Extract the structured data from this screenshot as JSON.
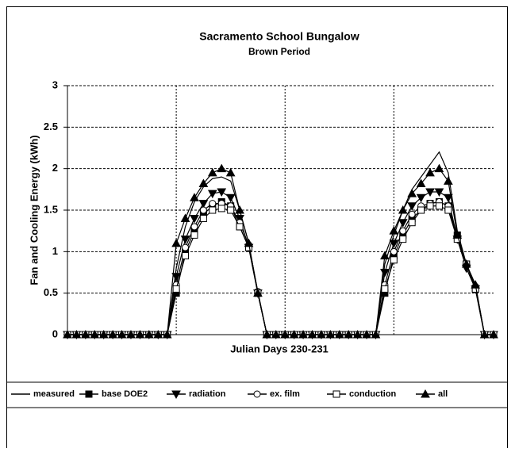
{
  "chart_data": {
    "type": "line",
    "title": "Sacramento School Bungalow",
    "subtitle": "Brown Period",
    "x_label": "Julian Days 230-231",
    "y_label": "Fan and Cooling Energy (kWh)",
    "categories": [
      null,
      null,
      null,
      null,
      null,
      null,
      null,
      null,
      null,
      null,
      null,
      null,
      null,
      null,
      null,
      null,
      null,
      null,
      null,
      null,
      null,
      null,
      null,
      null,
      null,
      null,
      null,
      null,
      null,
      null,
      null,
      null,
      null,
      null,
      null,
      null,
      null,
      null,
      null,
      null,
      null,
      null,
      null,
      null,
      null,
      null,
      null,
      null
    ],
    "ylim": [
      0,
      3
    ],
    "yticks": [
      0,
      0.5,
      1,
      1.5,
      2,
      2.5,
      3
    ],
    "grid": true,
    "legend": "bottom",
    "series": [
      {
        "name": "measured",
        "color": "#000000",
        "marker": "none",
        "values": [
          0,
          0,
          0,
          0,
          0,
          0,
          0,
          0,
          0,
          0,
          0,
          0,
          0.8,
          1.3,
          1.6,
          1.78,
          1.88,
          1.9,
          1.85,
          1.5,
          1.1,
          0.5,
          0,
          0,
          0,
          0,
          0,
          0,
          0,
          0,
          0,
          0,
          0,
          0,
          0,
          0.85,
          1.2,
          1.5,
          1.75,
          1.9,
          2.05,
          2.2,
          1.95,
          1.25,
          0.85,
          0.6,
          0,
          0
        ]
      },
      {
        "name": "base DOE2",
        "color": "#000000",
        "marker": "square",
        "values": [
          0,
          0,
          0,
          0,
          0,
          0,
          0,
          0,
          0,
          0,
          0,
          0,
          0.5,
          1.0,
          1.25,
          1.45,
          1.55,
          1.6,
          1.55,
          1.3,
          1.05,
          0.5,
          0,
          0,
          0,
          0,
          0,
          0,
          0,
          0,
          0,
          0,
          0,
          0,
          0,
          0.5,
          0.95,
          1.2,
          1.4,
          1.5,
          1.58,
          1.6,
          1.55,
          1.2,
          0.85,
          0.55,
          0,
          0
        ]
      },
      {
        "name": "radiation",
        "color": "#000000",
        "marker": "triangle-down",
        "values": [
          0,
          0,
          0,
          0,
          0,
          0,
          0,
          0,
          0,
          0,
          0,
          0,
          0.7,
          1.15,
          1.4,
          1.58,
          1.7,
          1.72,
          1.65,
          1.4,
          1.05,
          0.5,
          0,
          0,
          0,
          0,
          0,
          0,
          0,
          0,
          0,
          0,
          0,
          0,
          0,
          0.75,
          1.1,
          1.35,
          1.55,
          1.65,
          1.72,
          1.72,
          1.65,
          1.15,
          0.8,
          0.55,
          0,
          0
        ]
      },
      {
        "name": "ex. film",
        "color": "#000000",
        "marker": "circle-open",
        "values": [
          0,
          0,
          0,
          0,
          0,
          0,
          0,
          0,
          0,
          0,
          0,
          0,
          0.6,
          1.05,
          1.3,
          1.5,
          1.58,
          1.58,
          1.55,
          1.35,
          1.08,
          0.52,
          0,
          0,
          0,
          0,
          0,
          0,
          0,
          0,
          0,
          0,
          0,
          0,
          0,
          0.6,
          1.0,
          1.25,
          1.45,
          1.55,
          1.58,
          1.6,
          1.55,
          1.15,
          0.85,
          0.58,
          0,
          0
        ]
      },
      {
        "name": "conduction",
        "color": "#000000",
        "marker": "square-open",
        "values": [
          0,
          0,
          0,
          0,
          0,
          0,
          0,
          0,
          0,
          0,
          0,
          0,
          0.55,
          0.95,
          1.2,
          1.4,
          1.5,
          1.52,
          1.5,
          1.3,
          1.05,
          0.5,
          0,
          0,
          0,
          0,
          0,
          0,
          0,
          0,
          0,
          0,
          0,
          0,
          0,
          0.55,
          0.9,
          1.15,
          1.35,
          1.5,
          1.55,
          1.55,
          1.5,
          1.15,
          0.85,
          0.55,
          0,
          0
        ]
      },
      {
        "name": "all",
        "color": "#000000",
        "marker": "triangle-up",
        "values": [
          0,
          0,
          0,
          0,
          0,
          0,
          0,
          0,
          0,
          0,
          0,
          0,
          1.1,
          1.4,
          1.65,
          1.82,
          1.95,
          2.0,
          1.95,
          1.5,
          1.1,
          0.5,
          0,
          0,
          0,
          0,
          0,
          0,
          0,
          0,
          0,
          0,
          0,
          0,
          0,
          0.95,
          1.25,
          1.5,
          1.7,
          1.82,
          1.95,
          2.0,
          1.85,
          1.2,
          0.85,
          0.6,
          0,
          0
        ]
      }
    ]
  }
}
